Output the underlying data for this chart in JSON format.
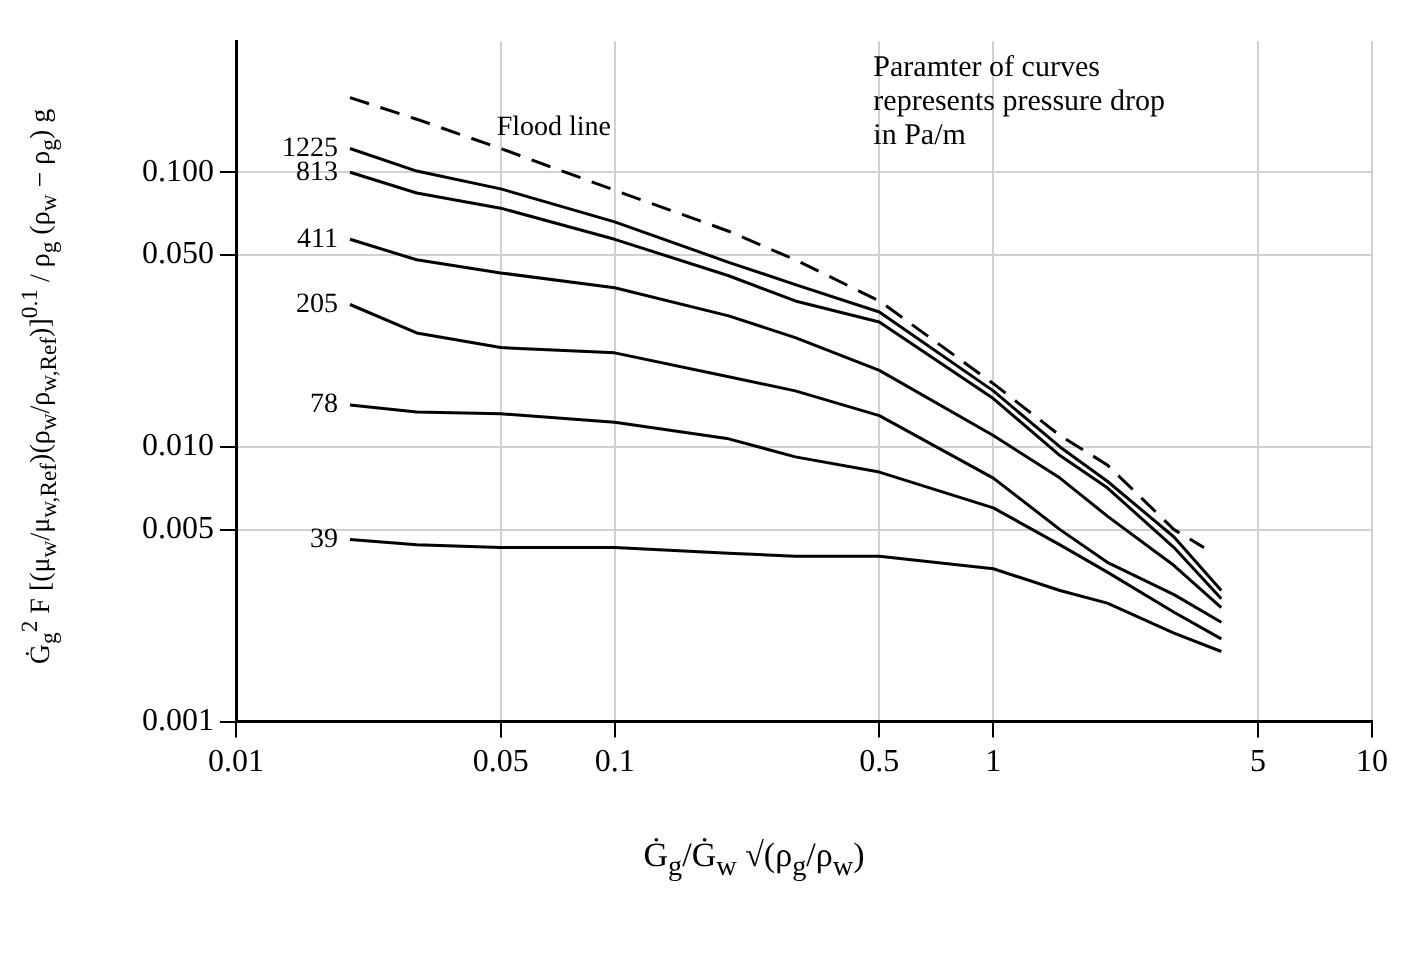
{
  "chart_data": {
    "type": "line",
    "xlabel": "Ġ$_{g}$/Ġ$_{w}$ √(ρ$_{g}$/ρ$_{w}$)",
    "ylabel": "Ġ$_{g}$$^{2}$ F [(μ$_{w}$/μ$_{w,Ref}$)(ρ$_{w}$/ρ$_{w,Ref}$)]$^{0.1}$ / ρ$_{g}$ (ρ$_{w}$ − ρ$_{g}$) g",
    "annotations": [
      "Paramter of curves represents pressure drop in Pa/m"
    ],
    "log": "xy",
    "grid": true,
    "legend": false,
    "marker": "none",
    "xlim": [
      0.01,
      10
    ],
    "xticks": [
      0.01,
      0.05,
      0.1,
      0.5,
      1,
      5,
      10
    ],
    "ylim": [
      0.001,
      0.3
    ],
    "yticks": [
      {
        "value": 0.1,
        "label": "0.100"
      },
      {
        "value": 0.05,
        "label": "0.050"
      },
      {
        "value": 0.01,
        "label": "0.010"
      },
      {
        "value": 0.005,
        "label": "0.005"
      },
      {
        "value": 0.001,
        "label": "0.001"
      }
    ],
    "x": [
      0.02,
      0.03,
      0.05,
      0.1,
      0.2,
      0.3,
      0.5,
      1,
      1.5,
      2,
      3,
      4
    ],
    "series": [
      {
        "name": "Flood line",
        "color": "#000000",
        "line_style": "dashed",
        "x": [
          0.02,
          0.03,
          0.05,
          0.1,
          0.2,
          0.3,
          0.5,
          1,
          1.5,
          2,
          3,
          3.6
        ],
        "values": [
          0.187,
          0.156,
          0.122,
          0.086,
          0.061,
          0.048,
          0.034,
          0.017,
          0.011,
          0.0086,
          0.005,
          0.0043
        ]
      },
      {
        "name": "1225",
        "color": "#000000",
        "line_style": "solid",
        "values": [
          0.122,
          0.101,
          0.087,
          0.066,
          0.047,
          0.039,
          0.031,
          0.016,
          0.01,
          0.0075,
          0.0047,
          0.003
        ]
      },
      {
        "name": "813",
        "color": "#000000",
        "line_style": "solid",
        "values": [
          0.1,
          0.084,
          0.074,
          0.057,
          0.042,
          0.034,
          0.0285,
          0.015,
          0.0093,
          0.0071,
          0.0043,
          0.0028
        ]
      },
      {
        "name": "411",
        "color": "#000000",
        "line_style": "solid",
        "values": [
          0.057,
          0.048,
          0.043,
          0.038,
          0.03,
          0.025,
          0.019,
          0.011,
          0.0077,
          0.0056,
          0.0037,
          0.0026
        ]
      },
      {
        "name": "205",
        "color": "#000000",
        "line_style": "solid",
        "values": [
          0.033,
          0.026,
          0.023,
          0.022,
          0.018,
          0.016,
          0.013,
          0.0077,
          0.005,
          0.0038,
          0.0029,
          0.0023
        ]
      },
      {
        "name": "78",
        "color": "#000000",
        "line_style": "solid",
        "values": [
          0.0142,
          0.0134,
          0.0132,
          0.0123,
          0.0107,
          0.0092,
          0.0081,
          0.006,
          0.0044,
          0.0035,
          0.0025,
          0.002
        ]
      },
      {
        "name": "39",
        "color": "#000000",
        "line_style": "solid",
        "values": [
          0.0046,
          0.0044,
          0.0043,
          0.0043,
          0.0041,
          0.004,
          0.004,
          0.0036,
          0.003,
          0.0027,
          0.0021,
          0.0018
        ]
      }
    ]
  }
}
